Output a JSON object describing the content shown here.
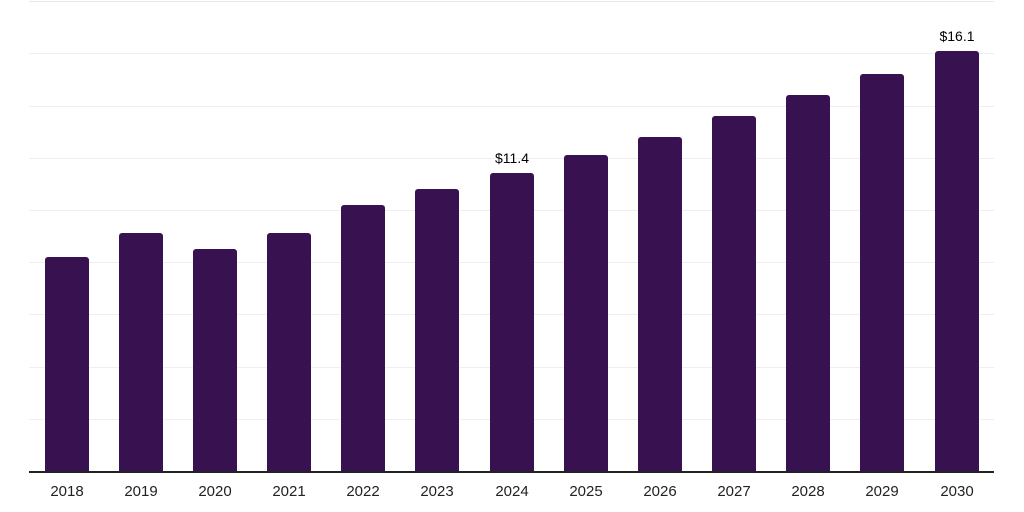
{
  "chart_data": {
    "type": "bar",
    "title": "",
    "xlabel": "",
    "ylabel": "",
    "categories": [
      "2018",
      "2019",
      "2020",
      "2021",
      "2022",
      "2023",
      "2024",
      "2025",
      "2026",
      "2027",
      "2028",
      "2029",
      "2030"
    ],
    "values": [
      8.2,
      9.1,
      8.5,
      9.1,
      10.2,
      10.8,
      11.4,
      12.1,
      12.8,
      13.6,
      14.4,
      15.2,
      16.1
    ],
    "data_labels": [
      {
        "category": "2024",
        "text": "$11.4"
      },
      {
        "category": "2030",
        "text": "$16.1"
      }
    ],
    "ylim": [
      0,
      18
    ],
    "grid": {
      "visible": true,
      "interval": 2,
      "axis": "y"
    },
    "y_tick_labels_visible": false,
    "legend_position": "none",
    "colors": {
      "bar": "#371150",
      "gridline": "#f0eef1",
      "top_gridline": "#e9e7ec",
      "axis_line": "#232323",
      "tick_label": "#222222",
      "data_label": "#000000",
      "background": "#ffffff"
    }
  }
}
